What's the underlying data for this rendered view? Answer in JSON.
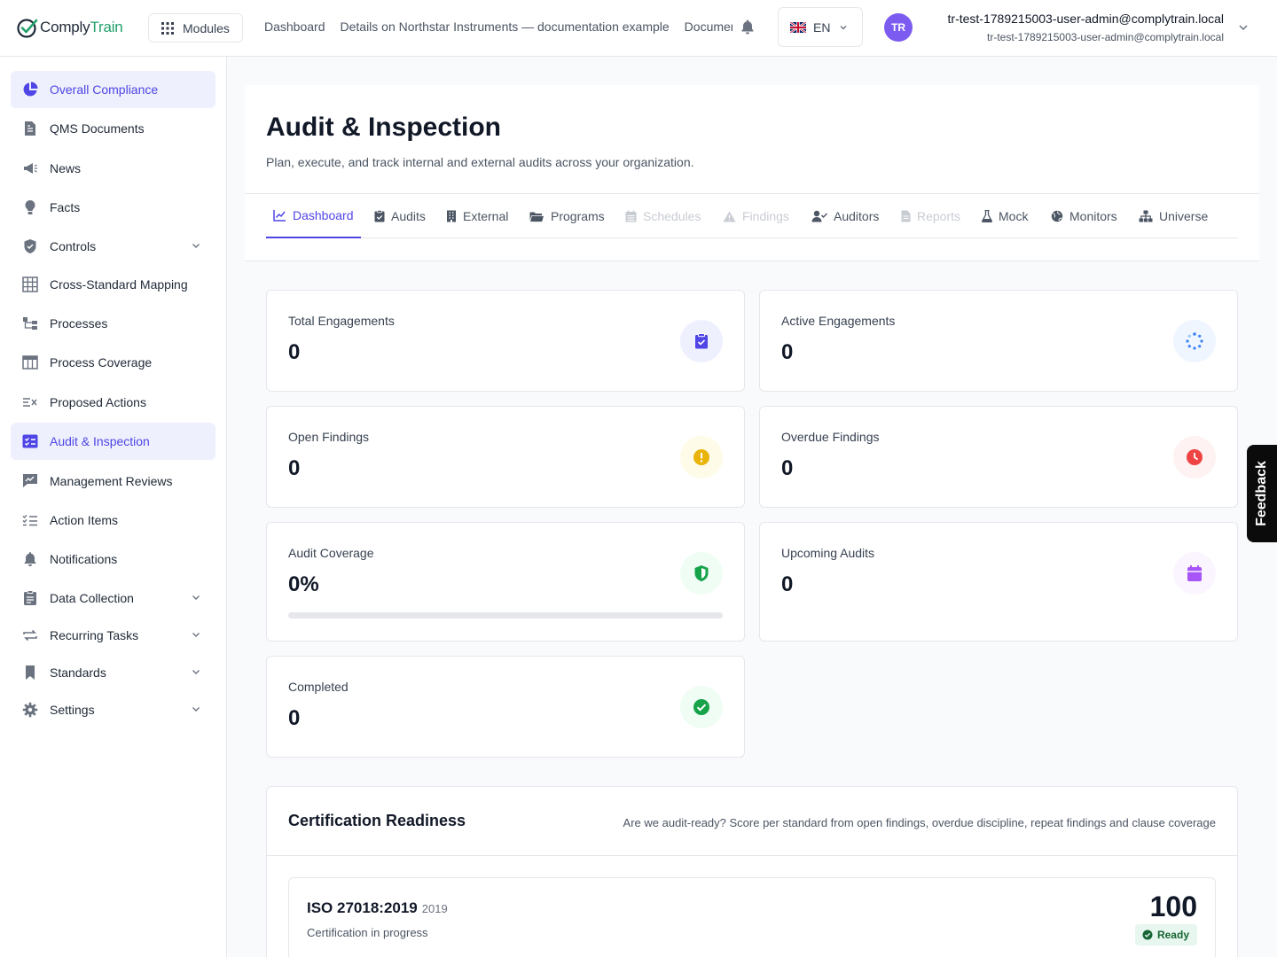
{
  "header": {
    "logo_prefix": "Comply",
    "logo_suffix": "Train",
    "modules_label": "Modules",
    "breadcrumbs": [
      "Dashboard",
      "Details on Northstar Instruments — documentation example",
      "Documents"
    ],
    "language": "EN",
    "user_initials": "TR",
    "user_name": "tr-test-1789215003-user-admin@complytrain.local",
    "user_email": "tr-test-1789215003-user-admin@complytrain.local"
  },
  "sidebar": {
    "items": [
      {
        "label": "Overall Compliance",
        "icon": "chart-pie-icon",
        "active": true
      },
      {
        "label": "QMS Documents",
        "icon": "document-icon"
      },
      {
        "label": "News",
        "icon": "megaphone-icon"
      },
      {
        "label": "Facts",
        "icon": "lightbulb-icon"
      },
      {
        "label": "Controls",
        "icon": "shield-icon",
        "expandable": true
      },
      {
        "label": "Cross-Standard Mapping",
        "icon": "grid-icon"
      },
      {
        "label": "Processes",
        "icon": "sitemap-icon"
      },
      {
        "label": "Process Coverage",
        "icon": "table-icon"
      },
      {
        "label": "Proposed Actions",
        "icon": "list-x-icon"
      },
      {
        "label": "Audit & Inspection",
        "icon": "checklist-icon",
        "active": true
      },
      {
        "label": "Management Reviews",
        "icon": "chart-edit-icon"
      },
      {
        "label": "Action Items",
        "icon": "list-check-icon"
      },
      {
        "label": "Notifications",
        "icon": "bell-icon"
      },
      {
        "label": "Data Collection",
        "icon": "clipboard-icon",
        "expandable": true
      },
      {
        "label": "Recurring Tasks",
        "icon": "repeat-icon",
        "expandable": true
      },
      {
        "label": "Standards",
        "icon": "bookmark-icon",
        "expandable": true
      },
      {
        "label": "Settings",
        "icon": "gear-icon",
        "expandable": true
      }
    ]
  },
  "page": {
    "title": "Audit & Inspection",
    "subtitle": "Plan, execute, and track internal and external audits across your organization."
  },
  "tabs": [
    {
      "label": "Dashboard",
      "icon": "chart-line-icon",
      "state": "active"
    },
    {
      "label": "Audits",
      "icon": "clipboard-check-icon",
      "state": "normal"
    },
    {
      "label": "External",
      "icon": "building-icon",
      "state": "normal"
    },
    {
      "label": "Programs",
      "icon": "folder-icon",
      "state": "normal"
    },
    {
      "label": "Schedules",
      "icon": "calendar-icon",
      "state": "disabled"
    },
    {
      "label": "Findings",
      "icon": "warning-icon",
      "state": "disabled"
    },
    {
      "label": "Auditors",
      "icon": "user-check-icon",
      "state": "normal"
    },
    {
      "label": "Reports",
      "icon": "file-icon",
      "state": "disabled"
    },
    {
      "label": "Mock",
      "icon": "flask-icon",
      "state": "normal"
    },
    {
      "label": "Monitors",
      "icon": "globe-icon",
      "state": "normal"
    },
    {
      "label": "Universe",
      "icon": "hierarchy-icon",
      "state": "normal"
    }
  ],
  "stats": [
    {
      "label": "Total Engagements",
      "value": "0",
      "icon": "clipboard-check-icon",
      "color": "#4f46e5",
      "bg": "#eef0fd"
    },
    {
      "label": "Active Engagements",
      "value": "0",
      "icon": "spinner-icon",
      "color": "#3b82f6",
      "bg": "#eff6ff"
    },
    {
      "label": "Open Findings",
      "value": "0",
      "icon": "exclamation-icon",
      "color": "#eab308",
      "bg": "#fefce8"
    },
    {
      "label": "Overdue Findings",
      "value": "0",
      "icon": "clock-icon",
      "color": "#ef4444",
      "bg": "#fef2f2"
    },
    {
      "label": "Audit Coverage",
      "value": "0%",
      "icon": "shield-half-icon",
      "color": "#16a34a",
      "bg": "#f0fdf4",
      "progress": 0
    },
    {
      "label": "Upcoming Audits",
      "value": "0",
      "icon": "calendar-icon",
      "color": "#a855f7",
      "bg": "#faf5ff"
    },
    {
      "label": "Completed",
      "value": "0",
      "icon": "check-circle-icon",
      "color": "#16a34a",
      "bg": "#f0fdf4"
    }
  ],
  "certification": {
    "title": "Certification Readiness",
    "description": "Are we audit-ready? Score per standard from open findings, overdue discipline, repeat findings and clause coverage",
    "standards": [
      {
        "name": "ISO 27018:2019",
        "year": "2019",
        "status": "Certification in progress",
        "score": "100",
        "badge": "Ready"
      }
    ]
  },
  "feedback_label": "Feedback"
}
